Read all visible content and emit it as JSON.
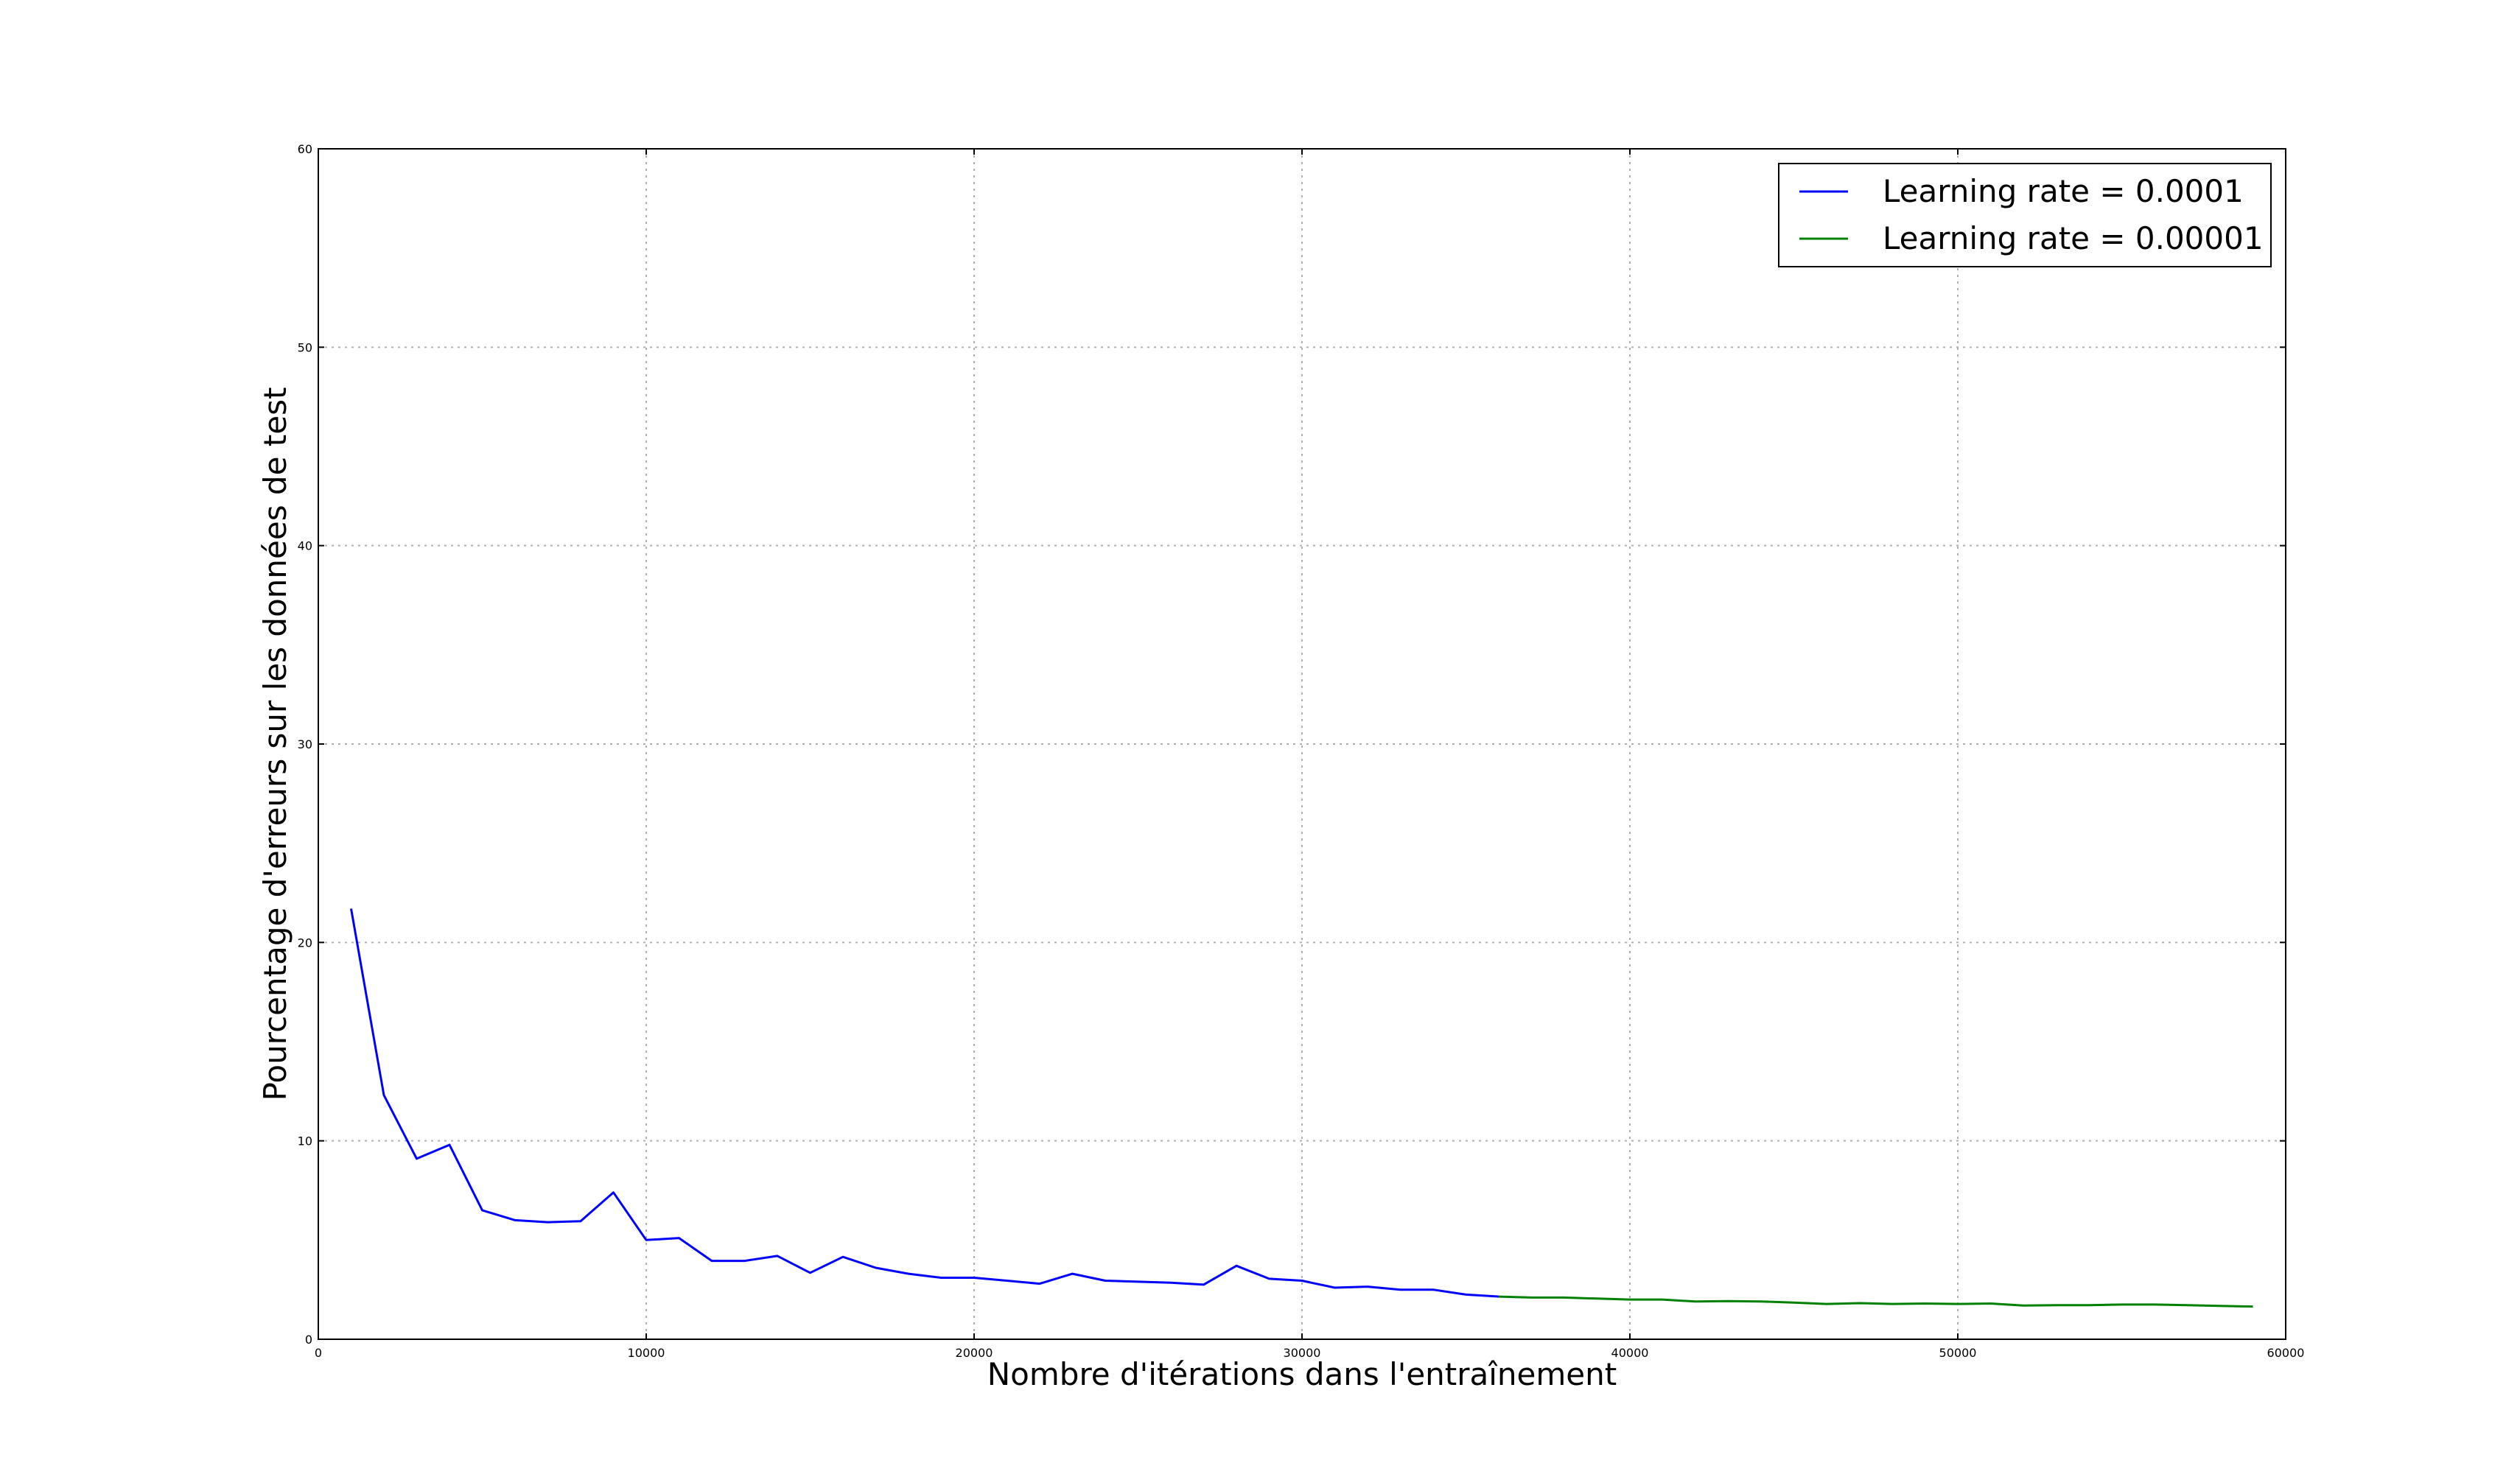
{
  "chart_data": {
    "type": "line",
    "xlabel": "Nombre d'itérations dans l'entraînement",
    "ylabel": "Pourcentage d'erreurs sur les données de test",
    "xlim": [
      0,
      60000
    ],
    "ylim": [
      0,
      60
    ],
    "xticks": [
      0,
      10000,
      20000,
      30000,
      40000,
      50000,
      60000
    ],
    "yticks": [
      0,
      10,
      20,
      30,
      40,
      50,
      60
    ],
    "grid": true,
    "legend_position": "top-right",
    "series": [
      {
        "name": "Learning rate = 0.0001",
        "color": "#0000ff",
        "x": [
          1000,
          2000,
          3000,
          4000,
          5000,
          6000,
          7000,
          8000,
          9000,
          10000,
          11000,
          12000,
          13000,
          14000,
          15000,
          16000,
          17000,
          18000,
          19000,
          20000,
          21000,
          22000,
          23000,
          24000,
          25000,
          26000,
          27000,
          28000,
          29000,
          30000,
          31000,
          32000,
          33000,
          34000,
          35000,
          36000
        ],
        "y": [
          21.7,
          12.3,
          9.1,
          9.8,
          6.5,
          6.0,
          5.9,
          5.95,
          7.4,
          5.0,
          5.1,
          3.95,
          3.95,
          4.2,
          3.35,
          4.15,
          3.6,
          3.3,
          3.1,
          3.1,
          2.95,
          2.8,
          3.3,
          2.95,
          2.9,
          2.85,
          2.75,
          3.7,
          3.05,
          2.95,
          2.6,
          2.65,
          2.5,
          2.5,
          2.25,
          2.15
        ]
      },
      {
        "name": "Learning rate = 0.00001",
        "color": "#008000",
        "x": [
          36000,
          37000,
          38000,
          39000,
          40000,
          41000,
          42000,
          43000,
          44000,
          45000,
          46000,
          47000,
          48000,
          49000,
          50000,
          51000,
          52000,
          53000,
          54000,
          55000,
          56000,
          57000,
          58000,
          59000
        ],
        "y": [
          2.15,
          2.1,
          2.1,
          2.05,
          2.0,
          2.0,
          1.9,
          1.92,
          1.9,
          1.85,
          1.78,
          1.82,
          1.78,
          1.8,
          1.78,
          1.8,
          1.7,
          1.72,
          1.72,
          1.75,
          1.75,
          1.72,
          1.68,
          1.65
        ]
      }
    ]
  }
}
